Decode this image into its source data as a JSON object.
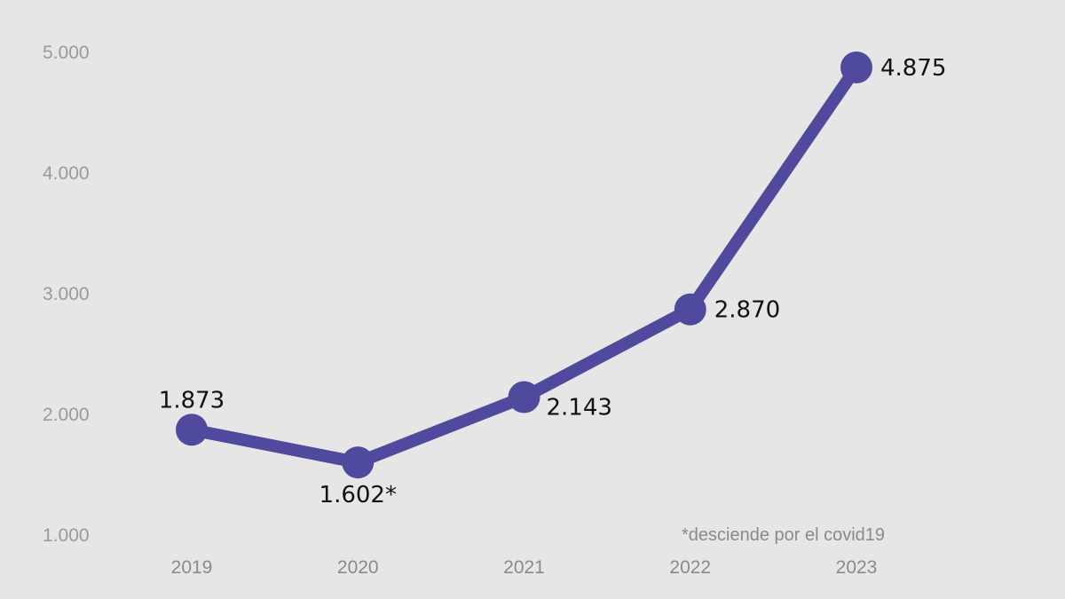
{
  "chart_data": {
    "type": "line",
    "title": "",
    "xlabel": "",
    "ylabel": "",
    "categories": [
      "2019",
      "2020",
      "2021",
      "2022",
      "2023"
    ],
    "values": [
      1873,
      1602,
      2143,
      2870,
      4875
    ],
    "data_labels": [
      "1.873",
      "1.602*",
      "2.143",
      "2.870",
      "4.875"
    ],
    "yticks": [
      1000,
      2000,
      3000,
      4000,
      5000
    ],
    "ytick_labels": [
      "1.000",
      "2.000",
      "3.000",
      "4.000",
      "5.000"
    ],
    "ylim": [
      1000,
      5000
    ],
    "grid": false,
    "legend": "none",
    "line_color": "#4f4a9e",
    "annotation": "*desciende por el covid19"
  }
}
